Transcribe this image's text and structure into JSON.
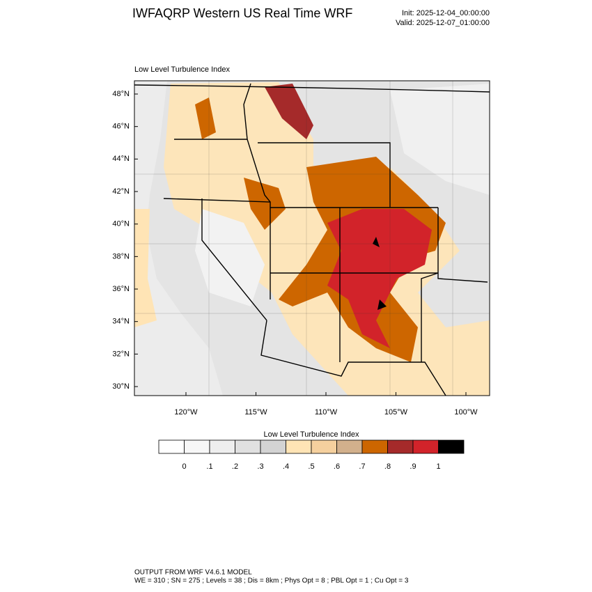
{
  "header": {
    "title": "IWFAQRP Western US Real Time WRF",
    "init": "Init: 2025-12-04_00:00:00",
    "valid": "Valid: 2025-12-07_01:00:00"
  },
  "map": {
    "title": "Low Level Turbulence Index",
    "lat_labels": [
      "48°N",
      "46°N",
      "44°N",
      "42°N",
      "40°N",
      "38°N",
      "36°N",
      "34°N",
      "32°N",
      "30°N"
    ],
    "lon_labels": [
      "120°W",
      "115°W",
      "110°W",
      "105°W",
      "100°W"
    ]
  },
  "colorbar": {
    "title": "Low Level Turbulence Index",
    "labels": [
      "0",
      ".1",
      ".2",
      ".3",
      ".4",
      ".5",
      ".6",
      ".7",
      ".8",
      ".9",
      "1"
    ],
    "colors": [
      "#ffffff",
      "#f7f7f7",
      "#eeeeee",
      "#e0e0e0",
      "#d3d3d3",
      "#ffe4b5",
      "#f5d09e",
      "#d2b08c",
      "#cd6600",
      "#a52a2a",
      "#d2232a",
      "#000000"
    ]
  },
  "footer": {
    "lines": [
      "OUTPUT FROM WRF V4.6.1 MODEL",
      "WE = 310 ; SN = 275 ; Levels = 38 ; Dis = 8km ; Phys Opt = 8 ; PBL Opt = 1 ; Cu Opt = 3"
    ]
  }
}
